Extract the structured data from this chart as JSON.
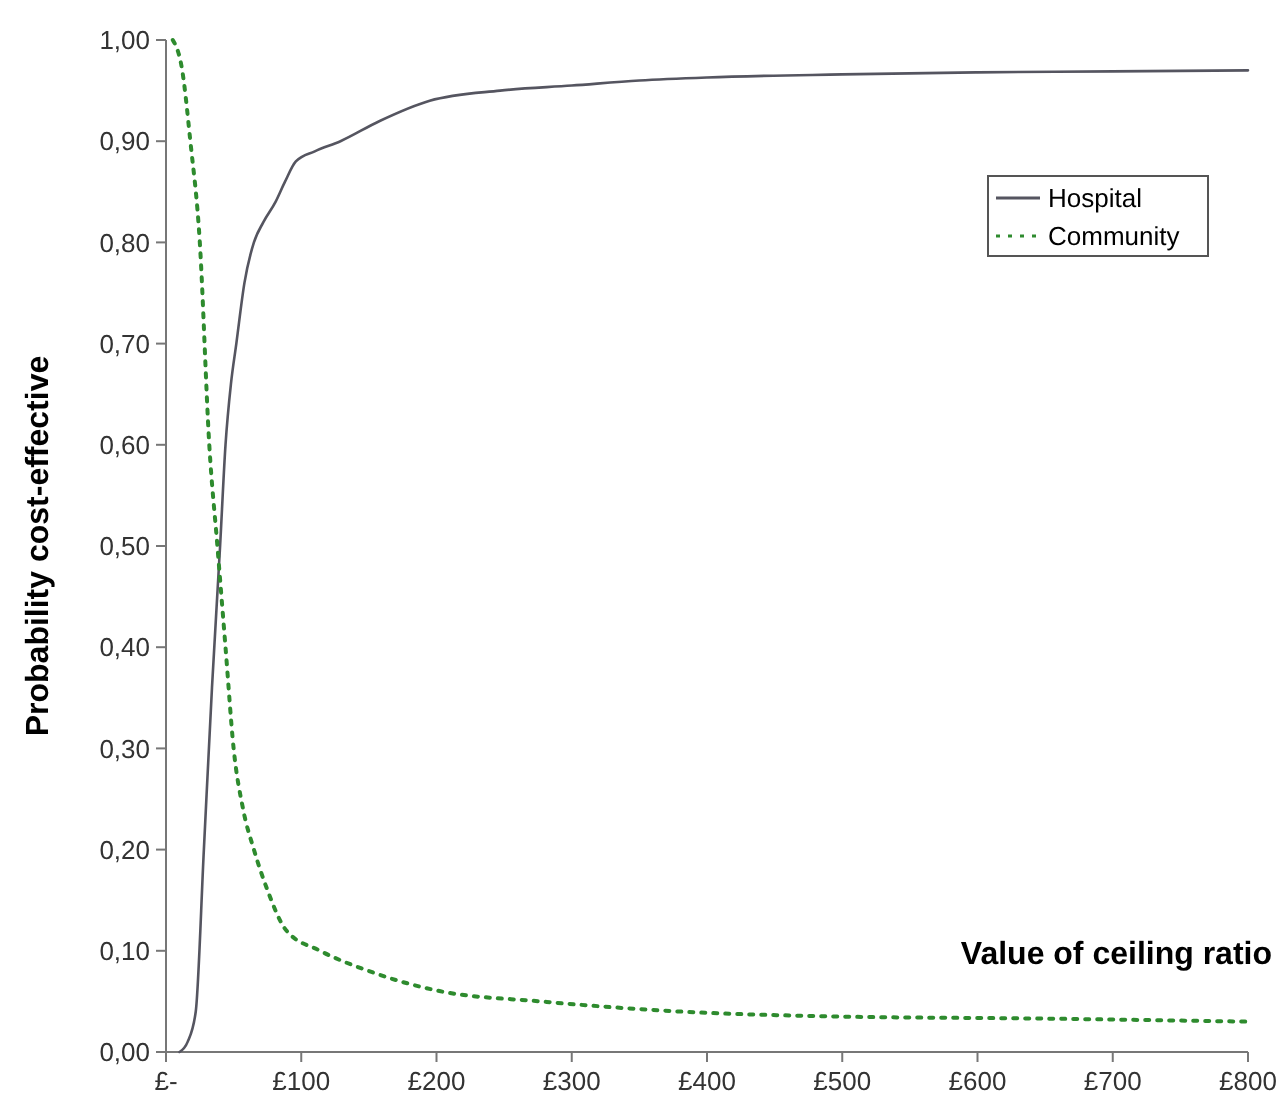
{
  "chart_data": {
    "type": "line",
    "xlabel": "Value of ceiling ratio",
    "ylabel": "Probability cost-effective",
    "xlim": [
      0,
      800
    ],
    "xticks": [
      {
        "value": 0,
        "label": "£-"
      },
      {
        "value": 100,
        "label": "£100"
      },
      {
        "value": 200,
        "label": "£200"
      },
      {
        "value": 300,
        "label": "£300"
      },
      {
        "value": 400,
        "label": "£400"
      },
      {
        "value": 500,
        "label": "£500"
      },
      {
        "value": 600,
        "label": "£600"
      },
      {
        "value": 700,
        "label": "£700"
      },
      {
        "value": 800,
        "label": "£800"
      }
    ],
    "ylim": [
      0,
      1
    ],
    "yticks": [
      {
        "value": 0,
        "label": "0,00"
      },
      {
        "value": 0.1,
        "label": "0,10"
      },
      {
        "value": 0.2,
        "label": "0,20"
      },
      {
        "value": 0.3,
        "label": "0,30"
      },
      {
        "value": 0.4,
        "label": "0,40"
      },
      {
        "value": 0.5,
        "label": "0,50"
      },
      {
        "value": 0.6,
        "label": "0,60"
      },
      {
        "value": 0.7,
        "label": "0,70"
      },
      {
        "value": 0.8,
        "label": "0,80"
      },
      {
        "value": 0.9,
        "label": "0,90"
      },
      {
        "value": 1,
        "label": "1,00"
      }
    ],
    "grid": false,
    "legend": "top right",
    "marker": "none",
    "series": [
      {
        "name": "Hospital",
        "color": "#555560",
        "line_style": "solid",
        "x": [
          10,
          16,
          22,
          28,
          34,
          40,
          44,
          48,
          52,
          58,
          65,
          72,
          81,
          88,
          96,
          110,
          129,
          158,
          195,
          247,
          300,
          350,
          400,
          500,
          600,
          700,
          800
        ],
        "values": [
          0,
          0.01,
          0.04,
          0.2,
          0.36,
          0.5,
          0.6,
          0.66,
          0.7,
          0.76,
          0.8,
          0.82,
          0.84,
          0.86,
          0.88,
          0.89,
          0.9,
          0.92,
          0.94,
          0.95,
          0.955,
          0.96,
          0.963,
          0.966,
          0.968,
          0.969,
          0.97
        ]
      },
      {
        "name": "Community",
        "color": "#2e8b2e",
        "line_style": "dotted",
        "x": [
          5,
          12,
          18,
          25,
          32,
          38,
          44,
          50,
          57,
          65,
          75,
          89,
          114,
          150,
          203,
          277,
          380,
          500,
          650,
          800
        ],
        "values": [
          1,
          0.97,
          0.9,
          0.8,
          0.6,
          0.5,
          0.4,
          0.3,
          0.24,
          0.2,
          0.16,
          0.12,
          0.1,
          0.08,
          0.06,
          0.05,
          0.04,
          0.035,
          0.033,
          0.03
        ]
      }
    ]
  }
}
